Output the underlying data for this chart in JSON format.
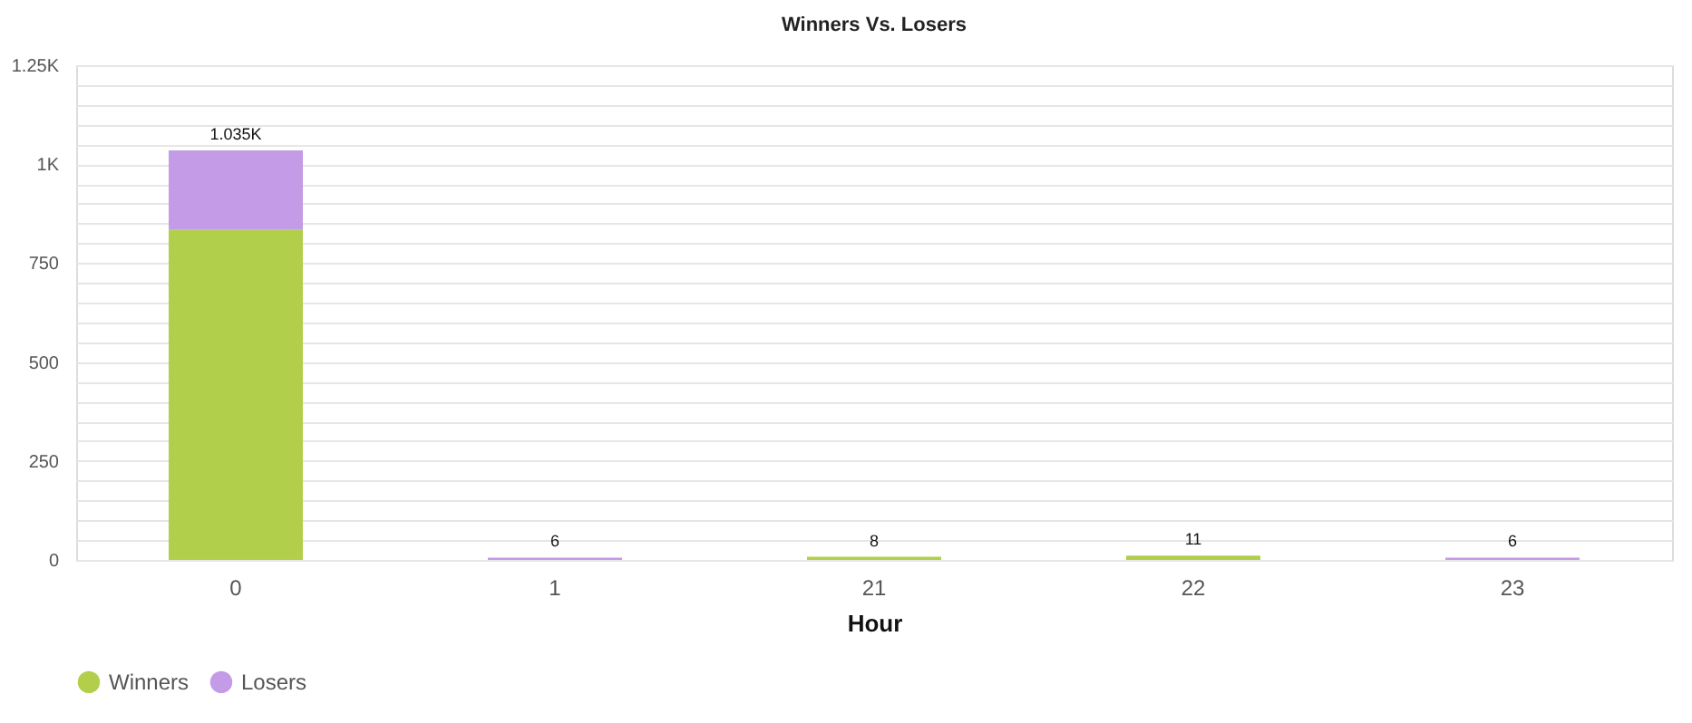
{
  "chart_data": {
    "type": "bar",
    "title": "Winners Vs. Losers",
    "xlabel": "Hour",
    "stacked": true,
    "categories": [
      "0",
      "1",
      "21",
      "22",
      "23"
    ],
    "series": [
      {
        "name": "Winners",
        "color": "#b2cf4c",
        "values": [
          834,
          0,
          8,
          11,
          0
        ]
      },
      {
        "name": "Losers",
        "color": "#c39be6",
        "values": [
          201,
          6,
          0,
          0,
          6
        ]
      }
    ],
    "totals": [
      "1.035K",
      "6",
      "8",
      "11",
      "6"
    ],
    "ylim": [
      0,
      1250
    ],
    "yticks": [
      0,
      {
        "value": 50,
        "label": null
      },
      {
        "value": 100,
        "label": null
      },
      {
        "value": 150,
        "label": null
      },
      {
        "value": 200,
        "label": null
      },
      250,
      {
        "value": 300,
        "label": null
      },
      {
        "value": 350,
        "label": null
      },
      {
        "value": 400,
        "label": null
      },
      {
        "value": 450,
        "label": null
      },
      500,
      {
        "value": 550,
        "label": null
      },
      {
        "value": 600,
        "label": null
      },
      {
        "value": 650,
        "label": null
      },
      {
        "value": 700,
        "label": null
      },
      750,
      {
        "value": 800,
        "label": null
      },
      {
        "value": 850,
        "label": null
      },
      {
        "value": 900,
        "label": null
      },
      {
        "value": 950,
        "label": null
      },
      {
        "value": 1000,
        "label": "1K"
      },
      {
        "value": 1050,
        "label": null
      },
      {
        "value": 1100,
        "label": null
      },
      {
        "value": 1150,
        "label": null
      },
      {
        "value": 1200,
        "label": null
      },
      {
        "value": 1250,
        "label": "1.25K"
      }
    ],
    "grid": "y",
    "legend": "bottom"
  }
}
